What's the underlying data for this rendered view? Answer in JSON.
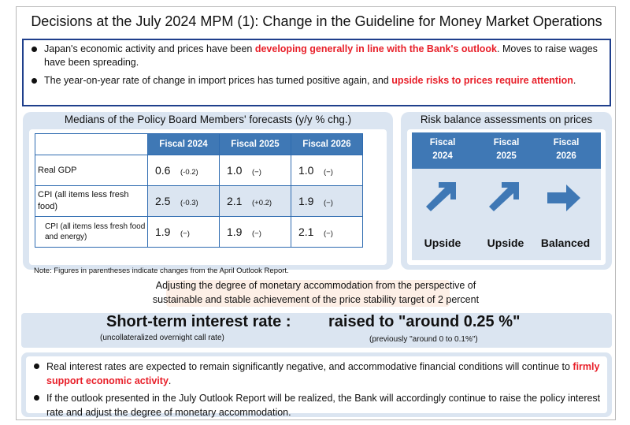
{
  "title": "Decisions at the July 2024 MPM (1): Change in the Guideline for Money Market Operations",
  "top_bullets": [
    {
      "pre": "Japan's economic activity and prices have been ",
      "highlight": "developing generally in line with the Bank's outlook",
      "post": ". Moves to raise wages have been spreading."
    },
    {
      "pre": "The year-on-year rate of change in import prices has turned positive again, and ",
      "highlight": "upside risks to prices require attention",
      "post": "."
    }
  ],
  "forecast": {
    "title": "Medians of the Policy Board Members' forecasts (y/y % chg.)",
    "columns": [
      "Fiscal 2024",
      "Fiscal 2025",
      "Fiscal 2026"
    ],
    "rows": [
      {
        "label": "Real GDP",
        "cells": [
          {
            "v": "0.6",
            "c": "(-0.2)"
          },
          {
            "v": "1.0",
            "c": "(−)"
          },
          {
            "v": "1.0",
            "c": "(−)"
          }
        ]
      },
      {
        "label": "CPI (all items less fresh food)",
        "cells": [
          {
            "v": "2.5",
            "c": "(-0.3)"
          },
          {
            "v": "2.1",
            "c": "(+0.2)"
          },
          {
            "v": "1.9",
            "c": "(−)"
          }
        ]
      },
      {
        "label": "CPI (all items less fresh food and energy)",
        "cells": [
          {
            "v": "1.9",
            "c": "(−)"
          },
          {
            "v": "1.9",
            "c": "(−)"
          },
          {
            "v": "2.1",
            "c": "(−)"
          }
        ]
      }
    ],
    "note": "Note: Figures in parentheses indicate changes from the April Outlook Report."
  },
  "risk": {
    "title": "Risk balance assessments on prices",
    "cols": [
      {
        "line1": "Fiscal",
        "line2": "2024",
        "label": "Upside",
        "dir": "up"
      },
      {
        "line1": "Fiscal",
        "line2": "2025",
        "label": "Upside",
        "dir": "up"
      },
      {
        "line1": "Fiscal",
        "line2": "2026",
        "label": "Balanced",
        "dir": "right"
      }
    ]
  },
  "adjust": {
    "line1": "Adjusting the degree of monetary accommodation from the perspective of",
    "line2": "sustainable and stable achievement of the price stability target of 2 percent"
  },
  "rate": {
    "title": "Short-term interest rate :",
    "sub": "(uncollateralized overnight call rate)",
    "value": "raised to \"around 0.25 %\"",
    "prev": "(previously \"around 0 to 0.1%\")"
  },
  "bottom_bullets": [
    {
      "pre": "Real interest rates are expected to remain significantly negative, and accommodative financial conditions will continue to ",
      "highlight": "firmly support economic activity",
      "post": "."
    },
    {
      "pre": "If the outlook presented in the July Outlook Report will be realized, the Bank will accordingly continue to raise the policy interest rate and adjust the degree of monetary accommodation.",
      "highlight": "",
      "post": ""
    }
  ],
  "colors": {
    "accent_blue": "#3f78b5",
    "light_blue": "#dbe5f1",
    "highlight_red": "#e8202a",
    "border_navy": "#1f3f8c"
  }
}
